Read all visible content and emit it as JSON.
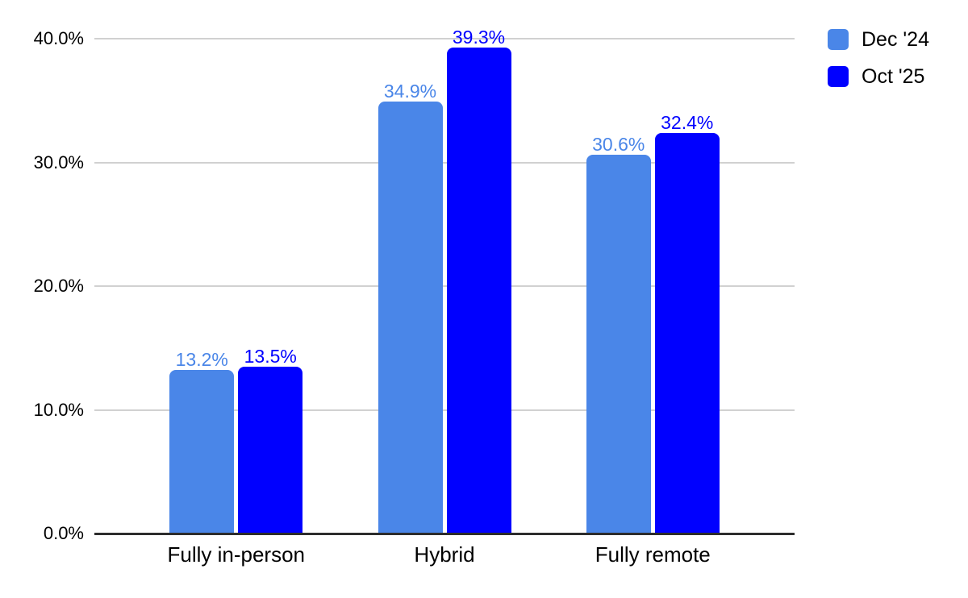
{
  "chart_data": {
    "type": "bar",
    "title": "",
    "xlabel": "",
    "ylabel": "",
    "categories": [
      "Fully in-person",
      "Hybrid",
      "Fully remote"
    ],
    "series": [
      {
        "name": "Dec '24",
        "color": "#4a86e8",
        "values": [
          13.2,
          34.9,
          30.6
        ],
        "data_labels": [
          "13.2%",
          "34.9%",
          "30.6%"
        ]
      },
      {
        "name": "Oct '25",
        "color": "#0000ff",
        "values": [
          13.5,
          39.3,
          32.4
        ],
        "data_labels": [
          "13.5%",
          "39.3%",
          "32.4%"
        ]
      }
    ],
    "ylim": [
      0,
      40
    ],
    "yticks": [
      {
        "value": 0,
        "label": "0.0%"
      },
      {
        "value": 10,
        "label": "10.0%"
      },
      {
        "value": 20,
        "label": "20.0%"
      },
      {
        "value": 30,
        "label": "30.0%"
      },
      {
        "value": 40,
        "label": "40.0%"
      }
    ],
    "grid": true,
    "legend_position": "top-right"
  },
  "colors": {
    "series_dec24": "#4a86e8",
    "series_oct25": "#0000ff",
    "gridline": "#d1d1d1",
    "axis_line": "#2d2d2d",
    "text": "#000000",
    "background": "#ffffff"
  }
}
